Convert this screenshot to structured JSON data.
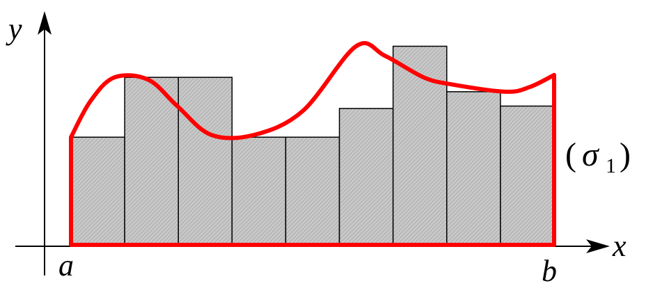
{
  "labels": {
    "y_axis": "y",
    "x_axis": "x",
    "lower_limit": "a",
    "upper_limit": "b",
    "region_open_paren": "(",
    "region_symbol": "σ",
    "region_subscript": "1",
    "region_close_paren": ")"
  },
  "colors": {
    "axis": "#000000",
    "curve": "#ff0000",
    "bar_fill": "#c8c8c8",
    "bar_hatch": "#9a9a9a",
    "bar_outline": "#000000",
    "background": "#ffffff"
  },
  "diagram": {
    "bar_count": 9,
    "bar_levels": [
      0.45,
      0.7,
      0.7,
      0.45,
      0.45,
      0.57,
      0.83,
      0.64,
      0.58
    ],
    "curve_samples": [
      [
        0.0,
        0.45
      ],
      [
        0.04,
        0.6
      ],
      [
        0.09,
        0.7
      ],
      [
        0.16,
        0.69
      ],
      [
        0.22,
        0.58
      ],
      [
        0.29,
        0.46
      ],
      [
        0.38,
        0.46
      ],
      [
        0.48,
        0.56
      ],
      [
        0.59,
        0.83
      ],
      [
        0.65,
        0.79
      ],
      [
        0.73,
        0.7
      ],
      [
        0.79,
        0.67
      ],
      [
        0.9,
        0.64
      ],
      [
        0.95,
        0.66
      ],
      [
        1.0,
        0.71
      ]
    ]
  }
}
